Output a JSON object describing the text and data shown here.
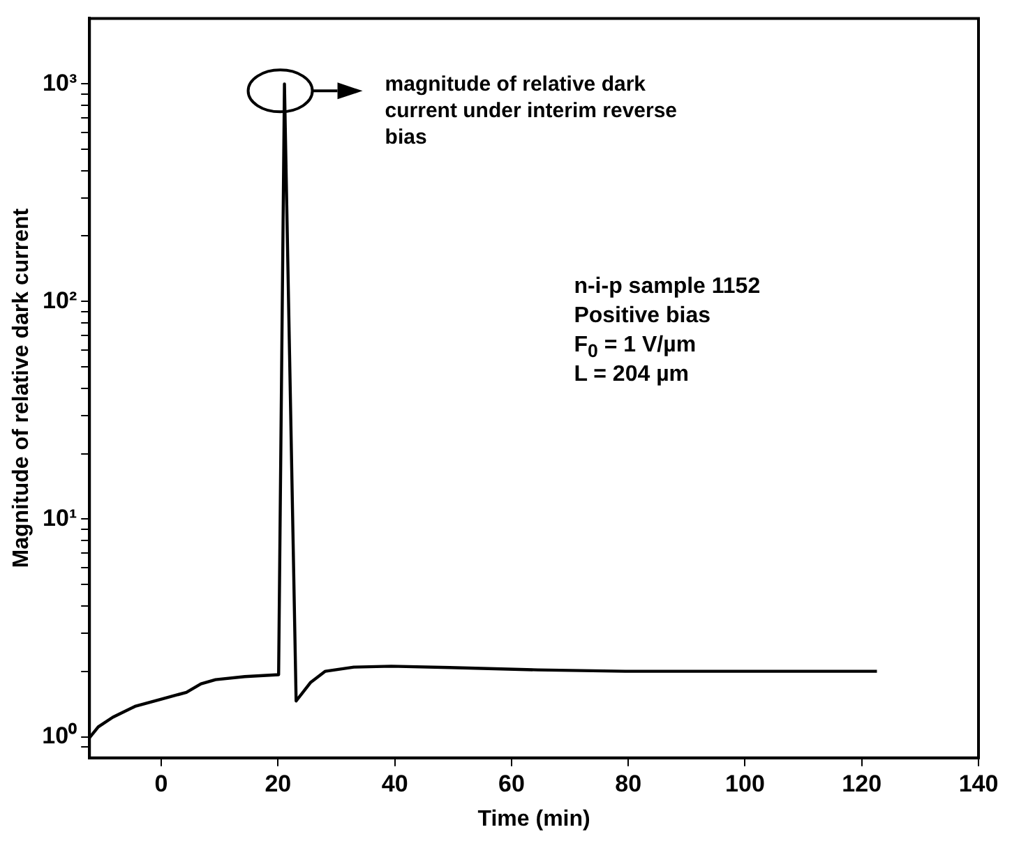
{
  "chart_data": {
    "type": "line",
    "xlabel": "Time (min)",
    "ylabel": "Magnitude of relative dark current",
    "x": [
      -12.3,
      -10.8,
      -8.3,
      -4.5,
      0,
      4.3,
      6.8,
      9.3,
      14.3,
      20.1,
      21.1,
      23.1,
      25.6,
      28.1,
      33,
      39.4,
      49.4,
      64.5,
      79.5,
      94.6,
      122.6
    ],
    "series": [
      {
        "color": "#000000",
        "values": [
          0.99,
          1.11,
          1.23,
          1.38,
          1.49,
          1.6,
          1.75,
          1.83,
          1.89,
          1.93,
          1000,
          1.46,
          1.78,
          2.0,
          2.09,
          2.11,
          2.08,
          2.03,
          2.0,
          2.0,
          2.0
        ]
      }
    ],
    "xlim": [
      -12.3,
      140
    ],
    "xticks": [
      0,
      20,
      40,
      60,
      80,
      100,
      120,
      140
    ],
    "ylim": [
      0.8,
      2000
    ],
    "log": "y",
    "yticks": [
      {
        "value": 0.9,
        "label": null
      },
      {
        "value": 1,
        "label": "10⁰"
      },
      {
        "value": 2,
        "label": null
      },
      {
        "value": 3,
        "label": null
      },
      {
        "value": 4,
        "label": null
      },
      {
        "value": 5,
        "label": null
      },
      {
        "value": 6,
        "label": null
      },
      {
        "value": 7,
        "label": null
      },
      {
        "value": 8,
        "label": null
      },
      {
        "value": 9,
        "label": null
      },
      {
        "value": 10,
        "label": "10¹"
      },
      {
        "value": 20,
        "label": null
      },
      {
        "value": 30,
        "label": null
      },
      {
        "value": 40,
        "label": null
      },
      {
        "value": 50,
        "label": null
      },
      {
        "value": 60,
        "label": null
      },
      {
        "value": 70,
        "label": null
      },
      {
        "value": 80,
        "label": null
      },
      {
        "value": 90,
        "label": null
      },
      {
        "value": 100,
        "label": "10²"
      },
      {
        "value": 200,
        "label": null
      },
      {
        "value": 300,
        "label": null
      },
      {
        "value": 400,
        "label": null
      },
      {
        "value": 500,
        "label": null
      },
      {
        "value": 600,
        "label": null
      },
      {
        "value": 700,
        "label": null
      },
      {
        "value": 800,
        "label": null
      },
      {
        "value": 900,
        "label": null
      },
      {
        "value": 1000,
        "label": "10³"
      }
    ],
    "grid": false,
    "legend": false,
    "marker": "none",
    "line_style": "solid",
    "annotations": [
      "magnitude of relative dark current under interim reverse bias",
      "n-i-p sample 1152",
      "Positive bias",
      "F$_{0}$ = 1 V/µm",
      "L = 204 µm"
    ]
  }
}
